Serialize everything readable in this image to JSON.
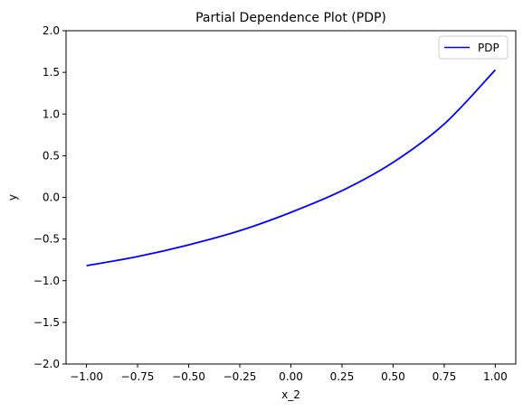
{
  "chart_data": {
    "type": "line",
    "title": "Partial Dependence Plot (PDP)",
    "xlabel": "x_2",
    "ylabel": "y",
    "xlim": [
      -1.1,
      1.1
    ],
    "ylim": [
      -2.0,
      2.0
    ],
    "xticks": [
      -1.0,
      -0.75,
      -0.5,
      -0.25,
      0.0,
      0.25,
      0.5,
      0.75,
      1.0
    ],
    "xtick_labels": [
      "−1.00",
      "−0.75",
      "−0.50",
      "−0.25",
      "0.00",
      "0.25",
      "0.50",
      "0.75",
      "1.00"
    ],
    "yticks": [
      -2.0,
      -1.5,
      -1.0,
      -0.5,
      0.0,
      0.5,
      1.0,
      1.5,
      2.0
    ],
    "ytick_labels": [
      "−2.0",
      "−1.5",
      "−1.0",
      "−0.5",
      "0.0",
      "0.5",
      "1.0",
      "1.5",
      "2.0"
    ],
    "grid": false,
    "legend_position": "top-right",
    "series": [
      {
        "name": "PDP",
        "color": "#0000ff",
        "x": [
          -1.0,
          -0.75,
          -0.5,
          -0.25,
          0.0,
          0.25,
          0.5,
          0.75,
          1.0
        ],
        "values": [
          -0.82,
          -0.71,
          -0.57,
          -0.4,
          -0.18,
          0.08,
          0.42,
          0.88,
          1.53
        ]
      }
    ]
  }
}
